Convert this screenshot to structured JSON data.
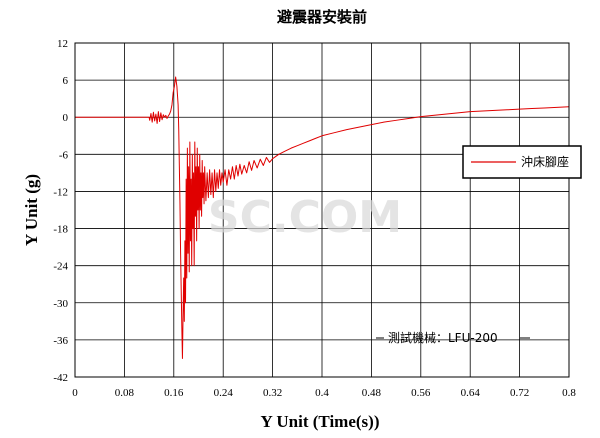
{
  "chart_data": {
    "type": "line",
    "title": "避震器安裝前",
    "xlabel": "Y Unit (Time(s))",
    "ylabel": "Y Unit (g)",
    "xlim": [
      0,
      0.8
    ],
    "ylim": [
      -42,
      12
    ],
    "x_ticks": [
      "0",
      "0.08",
      "0.16",
      "0.24",
      "0.32",
      "0.4",
      "0.48",
      "0.56",
      "0.64",
      "0.72",
      "0.8"
    ],
    "y_ticks": [
      "12",
      "6",
      "0",
      "-6",
      "-12",
      "-18",
      "-24",
      "-30",
      "-36",
      "-42"
    ],
    "grid": true,
    "legend_position": "right",
    "annotation": "測試機械：LFU-200",
    "watermark": "SC.COM",
    "series_color": "#e00000",
    "series": [
      {
        "name": "沖床腳座",
        "x": [
          0,
          0.12,
          0.121,
          0.123,
          0.125,
          0.127,
          0.129,
          0.131,
          0.133,
          0.135,
          0.137,
          0.139,
          0.141,
          0.143,
          0.145,
          0.147,
          0.149,
          0.151,
          0.153,
          0.155,
          0.157,
          0.159,
          0.161,
          0.163,
          0.165,
          0.167,
          0.168,
          0.169,
          0.17,
          0.171,
          0.172,
          0.173,
          0.174,
          0.175,
          0.176,
          0.177,
          0.178,
          0.179,
          0.18,
          0.181,
          0.182,
          0.183,
          0.184,
          0.185,
          0.186,
          0.187,
          0.188,
          0.189,
          0.19,
          0.191,
          0.192,
          0.193,
          0.194,
          0.195,
          0.196,
          0.197,
          0.198,
          0.199,
          0.2,
          0.201,
          0.202,
          0.203,
          0.204,
          0.205,
          0.206,
          0.207,
          0.208,
          0.209,
          0.21,
          0.212,
          0.214,
          0.216,
          0.218,
          0.22,
          0.222,
          0.224,
          0.226,
          0.228,
          0.23,
          0.232,
          0.234,
          0.236,
          0.238,
          0.24,
          0.243,
          0.246,
          0.249,
          0.252,
          0.255,
          0.258,
          0.261,
          0.264,
          0.267,
          0.27,
          0.274,
          0.278,
          0.282,
          0.286,
          0.29,
          0.295,
          0.3,
          0.305,
          0.31,
          0.315,
          0.32,
          0.33,
          0.34,
          0.35,
          0.36,
          0.37,
          0.38,
          0.39,
          0.4,
          0.42,
          0.44,
          0.46,
          0.48,
          0.5,
          0.52,
          0.54,
          0.56,
          0.58,
          0.6,
          0.62,
          0.64,
          0.66,
          0.68,
          0.7,
          0.72,
          0.74,
          0.76,
          0.78,
          0.8
        ],
        "y": [
          0,
          0,
          -0.5,
          0.6,
          -0.8,
          0.8,
          -0.6,
          0.5,
          -1.0,
          0.9,
          -0.7,
          0.7,
          -0.4,
          0.4,
          0,
          0.3,
          -0.2,
          0.2,
          0.5,
          1.0,
          2.0,
          4.0,
          5.0,
          6.5,
          5.0,
          2.0,
          -2.0,
          -8.0,
          -14.0,
          -22.0,
          -28.0,
          -34.0,
          -39.0,
          -32.0,
          -26.0,
          -33.0,
          -20.0,
          -30.0,
          -10.0,
          -26.0,
          -5.0,
          -22.0,
          -8.0,
          -25.0,
          -4.0,
          -20.0,
          -10.0,
          -24.0,
          -6.0,
          -18.0,
          -9.0,
          -24.0,
          -4.0,
          -16.0,
          -8.0,
          -20.0,
          -5.0,
          -15.0,
          -8.0,
          -18.0,
          -6.0,
          -15.0,
          -9.0,
          -16.0,
          -7.0,
          -13.0,
          -9.0,
          -14.0,
          -8.0,
          -13.5,
          -9.0,
          -13.0,
          -8.5,
          -12.5,
          -9.0,
          -13.0,
          -8.5,
          -12.0,
          -9.0,
          -11.5,
          -8.5,
          -11.0,
          -9.0,
          -10.5,
          -8.5,
          -11.0,
          -8.5,
          -10.0,
          -8.0,
          -10.0,
          -7.8,
          -9.5,
          -7.6,
          -9.2,
          -7.8,
          -9.0,
          -7.2,
          -8.6,
          -7.0,
          -8.2,
          -6.8,
          -7.8,
          -6.5,
          -7.3,
          -6.7,
          -6.0,
          -5.5,
          -5.0,
          -4.6,
          -4.2,
          -3.8,
          -3.4,
          -3.0,
          -2.5,
          -2.0,
          -1.6,
          -1.2,
          -0.8,
          -0.5,
          -0.2,
          0.1,
          0.3,
          0.5,
          0.7,
          0.9,
          1.0,
          1.1,
          1.2,
          1.3,
          1.4,
          1.5,
          1.6,
          1.7
        ]
      }
    ]
  }
}
